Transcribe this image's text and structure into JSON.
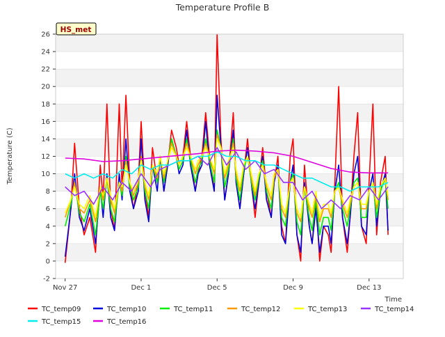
{
  "chart_data": {
    "type": "line",
    "title": "Temperature Profile B",
    "xlabel": "Time",
    "ylabel": "Temperature (C)",
    "badge": "HS_met",
    "xlim": [
      -0.5,
      17.8
    ],
    "ylim": [
      -2,
      26
    ],
    "y_ticks": [
      -2,
      0,
      2,
      4,
      6,
      8,
      10,
      12,
      14,
      16,
      18,
      20,
      22,
      24,
      26
    ],
    "x_ticks": [
      {
        "pos": 0,
        "label": "Nov 27"
      },
      {
        "pos": 4,
        "label": "Dec 1"
      },
      {
        "pos": 8,
        "label": "Dec 5"
      },
      {
        "pos": 12,
        "label": "Dec 9"
      },
      {
        "pos": 16,
        "label": "Dec 13"
      }
    ],
    "grid": "horizontal bands",
    "legend_position": "bottom",
    "series_order": [
      "TC_temp09",
      "TC_temp10",
      "TC_temp11",
      "TC_temp12",
      "TC_temp13",
      "TC_temp14",
      "TC_temp15",
      "TC_temp16"
    ],
    "series": [
      {
        "name": "TC_temp09",
        "color": "#ff0000",
        "x": [
          0,
          0.3,
          0.5,
          0.75,
          1,
          1.3,
          1.6,
          1.85,
          2,
          2.2,
          2.4,
          2.6,
          2.85,
          3,
          3.2,
          3.4,
          3.6,
          3.85,
          4,
          4.2,
          4.4,
          4.6,
          4.85,
          5,
          5.2,
          5.4,
          5.6,
          5.85,
          6,
          6.2,
          6.4,
          6.6,
          6.85,
          7,
          7.2,
          7.4,
          7.6,
          7.85,
          8,
          8.2,
          8.4,
          8.6,
          8.85,
          9,
          9.2,
          9.4,
          9.6,
          9.85,
          10,
          10.2,
          10.4,
          10.6,
          10.85,
          11,
          11.2,
          11.4,
          11.6,
          11.85,
          12,
          12.2,
          12.4,
          12.6,
          12.85,
          13,
          13.2,
          13.4,
          13.6,
          13.85,
          14,
          14.2,
          14.4,
          14.6,
          14.85,
          15,
          15.2,
          15.4,
          15.6,
          15.85,
          16,
          16.2,
          16.4,
          16.6,
          16.85,
          17
        ],
        "values": [
          -0.2,
          6,
          13.5,
          6,
          3,
          5,
          1,
          11,
          7,
          18,
          6,
          3.5,
          18,
          8,
          19,
          9,
          6,
          9,
          16,
          8,
          5,
          13,
          9,
          12,
          8,
          11,
          15,
          13,
          11,
          12,
          16,
          12,
          8,
          10,
          12,
          17,
          12,
          8,
          26,
          14,
          7,
          10,
          17,
          9,
          6,
          10,
          14,
          8,
          5,
          9,
          13,
          8,
          5,
          9,
          12,
          4,
          2,
          12,
          14,
          3,
          0,
          11,
          4,
          2,
          7,
          0,
          4,
          3,
          1,
          9,
          20,
          5,
          1,
          5,
          12,
          17,
          4,
          2,
          9,
          18,
          3,
          9,
          12,
          3
        ]
      },
      {
        "name": "TC_temp10",
        "color": "#0000dd",
        "x": [
          0,
          0.3,
          0.5,
          0.75,
          1,
          1.3,
          1.6,
          1.85,
          2,
          2.2,
          2.4,
          2.6,
          2.85,
          3,
          3.2,
          3.4,
          3.6,
          3.85,
          4,
          4.2,
          4.4,
          4.6,
          4.85,
          5,
          5.2,
          5.4,
          5.6,
          5.85,
          6,
          6.2,
          6.4,
          6.6,
          6.85,
          7,
          7.2,
          7.4,
          7.6,
          7.85,
          8,
          8.2,
          8.4,
          8.6,
          8.85,
          9,
          9.2,
          9.4,
          9.6,
          9.85,
          10,
          10.2,
          10.4,
          10.6,
          10.85,
          11,
          11.2,
          11.4,
          11.6,
          11.85,
          12,
          12.2,
          12.4,
          12.6,
          12.85,
          13,
          13.2,
          13.4,
          13.6,
          13.85,
          14,
          14.2,
          14.4,
          14.6,
          14.85,
          15,
          15.2,
          15.4,
          15.6,
          15.85,
          16,
          16.2,
          16.4,
          16.6,
          16.85,
          17
        ],
        "values": [
          0.5,
          6,
          10,
          5,
          3.5,
          6,
          2,
          8.5,
          5,
          10,
          5,
          3.5,
          10,
          7,
          14,
          8,
          6,
          8,
          14,
          7,
          4.5,
          11,
          8,
          12,
          8,
          11,
          14,
          12,
          10,
          11,
          15,
          11,
          8,
          10,
          11,
          16,
          11,
          8,
          19,
          13,
          7,
          10,
          15,
          9,
          6,
          10,
          13,
          8,
          6,
          9,
          12,
          7,
          5,
          9,
          11,
          3,
          2,
          9,
          11,
          3,
          1,
          9,
          4,
          2,
          6,
          1,
          4,
          4,
          2,
          8,
          11,
          5,
          2,
          5,
          10,
          12,
          4,
          3,
          8,
          10,
          4,
          8,
          10,
          3.5
        ]
      },
      {
        "name": "TC_temp11",
        "color": "#00ee00",
        "x": [
          0,
          0.3,
          0.5,
          0.75,
          1,
          1.3,
          1.6,
          1.85,
          2,
          2.2,
          2.4,
          2.6,
          2.85,
          3,
          3.2,
          3.4,
          3.6,
          3.85,
          4,
          4.2,
          4.4,
          4.6,
          4.85,
          5,
          5.2,
          5.4,
          5.6,
          5.85,
          6,
          6.2,
          6.4,
          6.6,
          6.85,
          7,
          7.2,
          7.4,
          7.6,
          7.85,
          8,
          8.2,
          8.4,
          8.6,
          8.85,
          9,
          9.2,
          9.4,
          9.6,
          9.85,
          10,
          10.2,
          10.4,
          10.6,
          10.85,
          11,
          11.2,
          11.4,
          11.6,
          11.85,
          12,
          12.2,
          12.4,
          12.6,
          12.85,
          13,
          13.2,
          13.4,
          13.6,
          13.85,
          14,
          14.2,
          14.4,
          14.6,
          14.85,
          15,
          15.2,
          15.4,
          15.6,
          15.85,
          16,
          16.2,
          16.4,
          16.6,
          16.85,
          17
        ],
        "values": [
          4,
          6.5,
          9,
          5.5,
          4.5,
          6.5,
          3,
          8,
          6,
          9.5,
          6,
          4.5,
          9,
          7.5,
          12,
          8.5,
          7,
          8.5,
          12,
          8,
          6,
          11,
          9,
          12,
          9,
          11.5,
          14,
          12,
          10.5,
          11.5,
          14,
          11.5,
          9,
          10.5,
          11.5,
          14,
          11.5,
          9,
          15,
          13,
          8.5,
          10.5,
          14,
          9.5,
          7,
          10.5,
          12,
          8.5,
          7,
          9.5,
          11.5,
          8,
          6,
          9.5,
          10.5,
          5,
          4,
          9,
          10,
          4.5,
          3,
          8.5,
          5,
          3.5,
          7,
          3,
          5,
          5,
          3.5,
          8,
          9,
          6,
          4,
          6,
          9,
          9.5,
          5,
          5,
          8,
          9,
          5,
          8,
          9.5,
          6
        ]
      },
      {
        "name": "TC_temp12",
        "color": "#ff9900",
        "x": [
          0,
          0.3,
          0.5,
          0.75,
          1,
          1.3,
          1.6,
          1.85,
          2,
          2.2,
          2.4,
          2.6,
          2.85,
          3,
          3.2,
          3.4,
          3.6,
          3.85,
          4,
          4.2,
          4.4,
          4.6,
          4.85,
          5,
          5.2,
          5.4,
          5.6,
          5.85,
          6,
          6.2,
          6.4,
          6.6,
          6.85,
          7,
          7.2,
          7.4,
          7.6,
          7.85,
          8,
          8.2,
          8.4,
          8.6,
          8.85,
          9,
          9.2,
          9.4,
          9.6,
          9.85,
          10,
          10.2,
          10.4,
          10.6,
          10.85,
          11,
          11.2,
          11.4,
          11.6,
          11.85,
          12,
          12.2,
          12.4,
          12.6,
          12.85,
          13,
          13.2,
          13.4,
          13.6,
          13.85,
          14,
          14.2,
          14.4,
          14.6,
          14.85,
          15,
          15.2,
          15.4,
          15.6,
          15.85,
          16,
          16.2,
          16.4,
          16.6,
          16.85,
          17
        ],
        "values": [
          5,
          7,
          9,
          6,
          5.5,
          7,
          4.5,
          8.5,
          7,
          9.5,
          7,
          5.5,
          9,
          8,
          11.5,
          9,
          7.5,
          9,
          12,
          8.5,
          7,
          11,
          9.5,
          12,
          9.5,
          11.5,
          13.5,
          12,
          11,
          12,
          13.5,
          12,
          10,
          11,
          12,
          13.5,
          12,
          10,
          14.5,
          13,
          9.5,
          11,
          13.5,
          10,
          8,
          11,
          12,
          9,
          7.5,
          10,
          11,
          8.5,
          7,
          9.5,
          10.5,
          6,
          5,
          9,
          9.5,
          5.5,
          4.5,
          8.5,
          6,
          5,
          7.5,
          4.5,
          6,
          6,
          5,
          8,
          8.5,
          6.5,
          5,
          6.5,
          8.5,
          9,
          6,
          6,
          8,
          9,
          6,
          8.5,
          9.5,
          7
        ]
      },
      {
        "name": "TC_temp13",
        "color": "#ffff00",
        "x": [
          0,
          0.3,
          0.5,
          0.75,
          1,
          1.3,
          1.6,
          1.85,
          2,
          2.2,
          2.4,
          2.6,
          2.85,
          3,
          3.2,
          3.4,
          3.6,
          3.85,
          4,
          4.2,
          4.4,
          4.6,
          4.85,
          5,
          5.2,
          5.4,
          5.6,
          5.85,
          6,
          6.2,
          6.4,
          6.6,
          6.85,
          7,
          7.2,
          7.4,
          7.6,
          7.85,
          8,
          8.2,
          8.4,
          8.6,
          8.85,
          9,
          9.2,
          9.4,
          9.6,
          9.85,
          10,
          10.2,
          10.4,
          10.6,
          10.85,
          11,
          11.2,
          11.4,
          11.6,
          11.85,
          12,
          12.2,
          12.4,
          12.6,
          12.85,
          13,
          13.2,
          13.4,
          13.6,
          13.85,
          14,
          14.2,
          14.4,
          14.6,
          14.85,
          15,
          15.2,
          15.4,
          15.6,
          15.85,
          16,
          16.2,
          16.4,
          16.6,
          16.85,
          17
        ],
        "values": [
          5.5,
          7,
          8.5,
          6.5,
          6,
          7.5,
          5,
          8.5,
          7.5,
          9.5,
          7.5,
          6,
          9,
          8.5,
          11,
          9,
          8,
          9.5,
          11.5,
          9,
          7.5,
          11,
          10,
          12,
          10,
          11.5,
          13,
          12,
          11,
          12,
          13,
          12,
          10.5,
          11.5,
          12,
          13,
          12,
          10.5,
          14,
          13,
          10,
          11.5,
          13,
          10.5,
          8.5,
          11,
          12,
          9.5,
          8,
          10,
          11,
          9,
          7.5,
          10,
          10.5,
          6.5,
          5.5,
          9,
          9.5,
          6,
          5,
          8.5,
          6.5,
          5.5,
          8,
          5,
          6.5,
          6.5,
          5.5,
          8,
          8.5,
          7,
          5.5,
          7,
          8.5,
          9,
          6.5,
          6.5,
          8,
          9,
          6.5,
          8.5,
          9.5,
          7.5
        ]
      },
      {
        "name": "TC_temp14",
        "color": "#9933ff",
        "x": [
          0,
          0.5,
          1,
          1.5,
          2,
          2.5,
          3,
          3.5,
          4,
          4.5,
          5,
          5.5,
          6,
          6.5,
          7,
          7.5,
          8,
          8.5,
          9,
          9.5,
          10,
          10.5,
          11,
          11.5,
          12,
          12.5,
          13,
          13.5,
          14,
          14.5,
          15,
          15.5,
          16,
          16.5,
          17
        ],
        "values": [
          8.5,
          7.5,
          8,
          6.5,
          8.5,
          7,
          9,
          8,
          10,
          8.5,
          10.5,
          11,
          11.5,
          11.5,
          12,
          11,
          13,
          11,
          12.5,
          10.5,
          11.5,
          10,
          10.5,
          9,
          9,
          7,
          8,
          6,
          7,
          6,
          7.5,
          7,
          8.5,
          7,
          8.5
        ]
      },
      {
        "name": "TC_temp15",
        "color": "#00eeee",
        "x": [
          0,
          0.5,
          1,
          1.5,
          2,
          2.5,
          3,
          3.5,
          4,
          4.5,
          5,
          5.5,
          6,
          6.5,
          7,
          7.5,
          8,
          8.5,
          9,
          9.5,
          10,
          10.5,
          11,
          11.5,
          12,
          12.5,
          13,
          13.5,
          14,
          14.5,
          15,
          15.5,
          16,
          16.5,
          17
        ],
        "values": [
          10,
          9.5,
          10,
          9.5,
          10,
          9.5,
          10.5,
          10,
          11,
          10.5,
          11,
          11,
          11.5,
          11.5,
          12,
          12,
          12.5,
          12,
          12,
          11.5,
          11.5,
          11,
          11,
          10.5,
          10,
          9.5,
          9.5,
          9,
          8.5,
          8.5,
          8,
          8.5,
          8.5,
          8.5,
          9
        ]
      },
      {
        "name": "TC_temp16",
        "color": "#dd00dd",
        "x": [
          0,
          1,
          2,
          3,
          4,
          5,
          6,
          7,
          8,
          9,
          10,
          11,
          12,
          13,
          14,
          15,
          16,
          17
        ],
        "values": [
          11.8,
          11.7,
          11.4,
          11.5,
          11.7,
          11.9,
          12.1,
          12.3,
          12.6,
          12.7,
          12.6,
          12.4,
          12.0,
          11.3,
          10.6,
          10.2,
          10.1,
          10.1
        ]
      }
    ]
  }
}
